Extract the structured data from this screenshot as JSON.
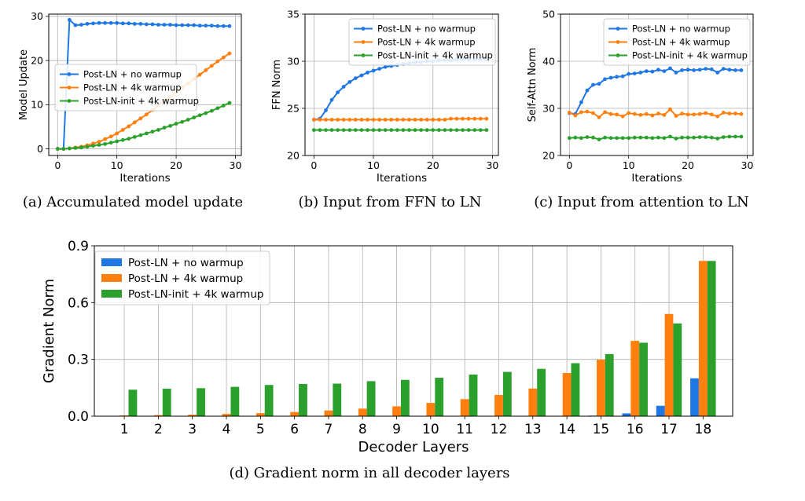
{
  "chart_data": [
    {
      "id": "a",
      "type": "line",
      "caption": "(a)  Accumulated model update",
      "xlabel": "Iterations",
      "ylabel": "Model Update",
      "xlim": [
        -1.5,
        31
      ],
      "ylim": [
        -1.5,
        30.5
      ],
      "xticks": [
        0,
        10,
        20,
        30
      ],
      "yticks": [
        0,
        10,
        20,
        30
      ],
      "grid": true,
      "legend_position": "center-left",
      "series": [
        {
          "name": "Post-LN + no warmup",
          "color": "#1f77e4",
          "values": [
            0,
            0,
            29.2,
            28,
            28.1,
            28.3,
            28.4,
            28.5,
            28.5,
            28.5,
            28.5,
            28.4,
            28.4,
            28.3,
            28.3,
            28.2,
            28.2,
            28.1,
            28.1,
            28.1,
            28,
            28,
            28,
            28,
            27.9,
            27.9,
            27.9,
            27.8,
            27.8,
            27.8
          ]
        },
        {
          "name": "Post-LN + 4k warmup",
          "color": "#ff7f0e",
          "values": [
            0,
            0,
            0.1,
            0.3,
            0.5,
            0.8,
            1.2,
            1.6,
            2.2,
            2.8,
            3.5,
            4.3,
            5.1,
            6,
            6.9,
            7.8,
            8.8,
            9.8,
            10.8,
            11.8,
            12.8,
            13.8,
            14.8,
            15.8,
            16.8,
            17.8,
            18.8,
            19.8,
            20.7,
            21.6
          ]
        },
        {
          "name": "Post-LN-init + 4k warmup",
          "color": "#2ca02c",
          "values": [
            0,
            0,
            0.1,
            0.2,
            0.3,
            0.5,
            0.7,
            0.9,
            1.1,
            1.4,
            1.7,
            2,
            2.3,
            2.7,
            3.1,
            3.5,
            3.9,
            4.3,
            4.8,
            5.2,
            5.7,
            6.1,
            6.6,
            7.1,
            7.6,
            8.1,
            8.6,
            9.2,
            9.8,
            10.4
          ]
        }
      ]
    },
    {
      "id": "b",
      "type": "line",
      "caption": "(b)  Input from FFN to LN",
      "xlabel": "Iterations",
      "ylabel": "FFN Norm",
      "xlim": [
        -1.5,
        31
      ],
      "ylim": [
        20,
        35
      ],
      "xticks": [
        0,
        10,
        20,
        30
      ],
      "yticks": [
        20,
        25,
        30,
        35
      ],
      "grid": true,
      "legend_position": "top-right",
      "series": [
        {
          "name": "Post-LN + no warmup",
          "color": "#1f77e4",
          "values": [
            23.8,
            23.9,
            24.8,
            25.9,
            26.7,
            27.3,
            27.8,
            28.2,
            28.5,
            28.8,
            29,
            29.2,
            29.4,
            29.5,
            29.6,
            29.7,
            29.8,
            29.9,
            29.9,
            30,
            30,
            30.1,
            30.1,
            30.1,
            30.2,
            30.2,
            30.2,
            30.2,
            30.2,
            30.2
          ]
        },
        {
          "name": "Post-LN + 4k warmup",
          "color": "#ff7f0e",
          "values": [
            23.8,
            23.8,
            23.8,
            23.8,
            23.8,
            23.8,
            23.8,
            23.8,
            23.8,
            23.8,
            23.8,
            23.8,
            23.8,
            23.8,
            23.8,
            23.8,
            23.8,
            23.8,
            23.8,
            23.8,
            23.8,
            23.8,
            23.8,
            23.9,
            23.9,
            23.9,
            23.9,
            23.9,
            23.9,
            23.9
          ]
        },
        {
          "name": "Post-LN-init + 4k warmup",
          "color": "#2ca02c",
          "values": [
            22.7,
            22.7,
            22.7,
            22.7,
            22.7,
            22.7,
            22.7,
            22.7,
            22.7,
            22.7,
            22.7,
            22.7,
            22.7,
            22.7,
            22.7,
            22.7,
            22.7,
            22.7,
            22.7,
            22.7,
            22.7,
            22.7,
            22.7,
            22.7,
            22.7,
            22.7,
            22.7,
            22.7,
            22.7,
            22.7
          ]
        }
      ]
    },
    {
      "id": "c",
      "type": "line",
      "caption": "(c)  Input from attention to LN",
      "xlabel": "Iterations",
      "ylabel": "Self-Attn Norm",
      "xlim": [
        -1.5,
        31
      ],
      "ylim": [
        20,
        50
      ],
      "xticks": [
        0,
        10,
        20,
        30
      ],
      "yticks": [
        20,
        30,
        40,
        50
      ],
      "grid": true,
      "legend_position": "top-right",
      "series": [
        {
          "name": "Post-LN + no warmup",
          "color": "#1f77e4",
          "values": [
            29,
            28.8,
            31.3,
            33.8,
            35,
            35.2,
            36.2,
            36.5,
            36.7,
            36.8,
            37.3,
            37.4,
            37.6,
            37.9,
            37.8,
            38.2,
            37.9,
            38.5,
            37.6,
            38.1,
            38.2,
            38.1,
            38.2,
            38.4,
            38.3,
            37.6,
            38.4,
            38.2,
            38.1,
            38.1
          ]
        },
        {
          "name": "Post-LN + 4k warmup",
          "color": "#ff7f0e",
          "values": [
            29.1,
            28.5,
            29.2,
            29.3,
            29,
            28.1,
            29.2,
            28.8,
            28.7,
            28.3,
            29,
            28.8,
            28.6,
            28.8,
            28.5,
            28.9,
            28.6,
            29.8,
            28.4,
            28.9,
            28.7,
            28.7,
            28.8,
            29,
            28.7,
            28.3,
            29.1,
            28.9,
            28.9,
            28.8
          ]
        },
        {
          "name": "Post-LN-init + 4k warmup",
          "color": "#2ca02c",
          "values": [
            23.7,
            23.8,
            23.7,
            23.9,
            23.8,
            23.4,
            23.8,
            23.7,
            23.7,
            23.7,
            23.7,
            23.8,
            23.8,
            23.8,
            23.7,
            23.8,
            23.7,
            24,
            23.6,
            23.8,
            23.8,
            23.8,
            23.9,
            23.9,
            23.8,
            23.6,
            23.9,
            24,
            24,
            24
          ]
        }
      ]
    },
    {
      "id": "d",
      "type": "bar",
      "caption": "(d)  Gradient norm in all decoder layers",
      "xlabel": "Decoder Layers",
      "ylabel": "Gradient Norm",
      "categories": [
        "1",
        "2",
        "3",
        "4",
        "5",
        "6",
        "7",
        "8",
        "9",
        "10",
        "11",
        "12",
        "13",
        "14",
        "15",
        "16",
        "17",
        "18"
      ],
      "ylim": [
        0,
        0.9
      ],
      "yticks": [
        "0.0",
        "0.3",
        "0.6",
        "0.9"
      ],
      "grid": true,
      "legend_position": "top-left",
      "series": [
        {
          "name": "Post-LN + no warmup",
          "color": "#1f77e4",
          "values": [
            0,
            0,
            0,
            0,
            0,
            0,
            0,
            0,
            0,
            0,
            0,
            0,
            0,
            0,
            0.003,
            0.015,
            0.055,
            0.2
          ]
        },
        {
          "name": "Post-LN + 4k warmup",
          "color": "#ff7f0e",
          "values": [
            0.004,
            0.006,
            0.008,
            0.012,
            0.016,
            0.022,
            0.03,
            0.04,
            0.052,
            0.07,
            0.09,
            0.112,
            0.146,
            0.228,
            0.298,
            0.398,
            0.54,
            0.82
          ]
        },
        {
          "name": "Post-LN-init + 4k warmup",
          "color": "#2ca02c",
          "values": [
            0.14,
            0.145,
            0.148,
            0.155,
            0.165,
            0.17,
            0.172,
            0.185,
            0.192,
            0.203,
            0.22,
            0.234,
            0.25,
            0.28,
            0.328,
            0.388,
            0.49,
            0.82
          ]
        }
      ]
    }
  ]
}
